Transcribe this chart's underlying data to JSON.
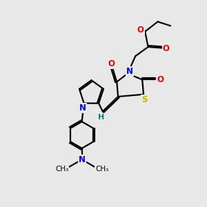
{
  "bg_color": "#e8e8e8",
  "bond_color": "#000000",
  "N_color": "#0000ee",
  "O_color": "#ee0000",
  "S_color": "#bbbb00",
  "H_color": "#008080",
  "line_width": 1.6,
  "fig_width": 3.0,
  "fig_height": 3.0,
  "dpi": 100,
  "xlim": [
    0,
    10
  ],
  "ylim": [
    0,
    10
  ]
}
